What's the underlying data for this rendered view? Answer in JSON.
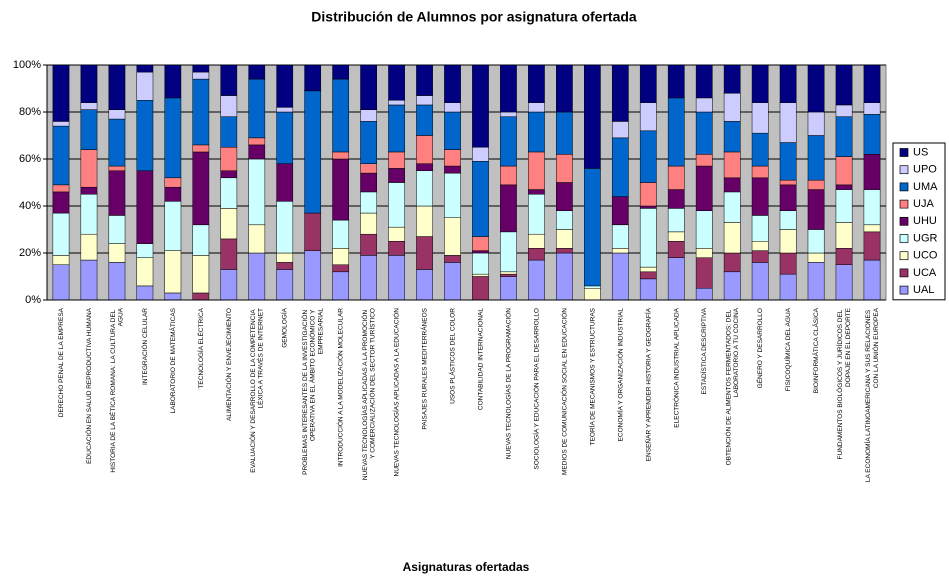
{
  "chart_data": {
    "type": "stacked_bar_100",
    "title": "Distribución de Alumnos por asignatura ofertada",
    "x_label": "Asignaturas ofertadas",
    "categories": [
      "DERECHO PENAL DE LA EMPRESA",
      "EDUCACIÓN EN SALUD REPRODUCTIVA HUMANA",
      "HISTORIA DE LA BÉTICA ROMANA: LA CULTURA DEL AGUA",
      "INTEGRACIÓN CELULAR",
      "LABORATORIO DE MATEMÁTICAS",
      "TECNOLOGÍA ELÉCTRICA",
      "ALIMENTACIÓN Y ENVEJECIMIENTO",
      "EVALUACIÓN Y DESARROLLO DE LA COMPETENCIA LÉXICA A TRAVÉS DE INTERNET",
      "GEMOLOGÍA",
      "PROBLEMAS INTERESANTES DE LA INVESTIGACIÓN OPERATIVA EN EL ÁMBITO ECONÓMICO Y EMPRESARIAL",
      "INTRODUCCIÓN A LA MODELIZACIÓN MOLECULAR",
      "NUEVAS TECNOLOGÍAS APLICADAS A LA PROMOCIÓN Y COMERCIALIZACIÓN DEL SECTOR TURÍSTICO",
      "NUEVAS TECNOLOGÍAS APLICADAS A LA EDUCACIÓN",
      "PAISAJES RURALES MEDITERRÁNEOS",
      "USOS PLÁSTICOS DEL COLOR",
      "CONTABILIDAD INTERNACIONAL",
      "NUEVAS TECNOLOGÍAS DE LA PROGRAMACIÓN",
      "SOCIOLOGÍA Y EDUCACIÓN PARA EL DESARROLLO",
      "MEDIOS DE COMUNICACIÓN SOCIAL EN EDUCACIÓN",
      "TEORÍA DE MECANISMOS Y ESTRUCTURAS",
      "ECONOMÍA Y ORGANIZACIÓN INDUSTRIAL",
      "ENSEÑAR Y APRENDER HISTORIA Y GEOGRAFÍA",
      "ELECTRÓNICA INDUSTRIAL APLICADA",
      "ESTADÍSTICA DESCRIPTIVA",
      "OBTENCIÓN DE ALIMENTOS FERMENTADOS: DEL LABORATORIO A TU COCINA",
      "GÉNERO Y DESARROLLO",
      "FISICOQUÍMICA DEL AGUA",
      "BIOINFORMÁTICA CLÁSICA",
      "FUNDAMENTOS BIOLÓGICOS Y JURÍDICOS DEL DOPAJE EN EL DEPORTE",
      "LA ECONOMÍA LATINOAMERICANA Y SUS RELACIONES CON LA UNIÓN EUROPEA"
    ],
    "series": [
      {
        "name": "UAL",
        "color": "#9999ff",
        "values": [
          15,
          17,
          16,
          6,
          3,
          0,
          13,
          20,
          13,
          21,
          12,
          19,
          19,
          13,
          16,
          0,
          10,
          17,
          20,
          0,
          20,
          9,
          18,
          5,
          12,
          16,
          11,
          16,
          15,
          17
        ]
      },
      {
        "name": "UCA",
        "color": "#993366",
        "values": [
          0,
          0,
          0,
          0,
          0,
          3,
          13,
          0,
          3,
          16,
          3,
          9,
          6,
          14,
          3,
          10,
          1,
          5,
          2,
          0,
          0,
          3,
          7,
          13,
          8,
          5,
          9,
          0,
          7,
          12
        ]
      },
      {
        "name": "UCO",
        "color": "#ffffcc",
        "values": [
          4,
          11,
          8,
          12,
          18,
          16,
          13,
          12,
          4,
          0,
          7,
          9,
          6,
          13,
          16,
          1,
          1,
          6,
          8,
          5,
          2,
          2,
          4,
          4,
          13,
          4,
          10,
          4,
          11,
          3
        ]
      },
      {
        "name": "UGR",
        "color": "#ccffff",
        "values": [
          18,
          17,
          12,
          6,
          21,
          13,
          13,
          28,
          22,
          0,
          12,
          9,
          19,
          15,
          19,
          9,
          17,
          17,
          8,
          1,
          10,
          25,
          10,
          16,
          13,
          11,
          8,
          10,
          14,
          15
        ]
      },
      {
        "name": "UHU",
        "color": "#660066",
        "values": [
          9,
          3,
          19,
          31,
          6,
          31,
          3,
          6,
          16,
          0,
          26,
          8,
          6,
          3,
          3,
          1,
          20,
          2,
          12,
          0,
          12,
          1,
          8,
          19,
          6,
          16,
          11,
          17,
          2,
          15
        ]
      },
      {
        "name": "UJA",
        "color": "#ff8080",
        "values": [
          3,
          16,
          2,
          0,
          4,
          3,
          10,
          3,
          0,
          0,
          3,
          4,
          7,
          12,
          7,
          6,
          8,
          16,
          12,
          0,
          0,
          10,
          10,
          5,
          11,
          5,
          2,
          4,
          12,
          0
        ]
      },
      {
        "name": "UMA",
        "color": "#0066cc",
        "values": [
          25,
          17,
          20,
          30,
          34,
          28,
          13,
          25,
          22,
          52,
          31,
          18,
          20,
          13,
          16,
          32,
          21,
          17,
          18,
          50,
          25,
          22,
          29,
          18,
          13,
          14,
          16,
          19,
          17,
          17
        ]
      },
      {
        "name": "UPO",
        "color": "#ccccff",
        "values": [
          2,
          3,
          4,
          12,
          0,
          3,
          9,
          0,
          2,
          0,
          0,
          5,
          2,
          4,
          4,
          6,
          2,
          4,
          0,
          0,
          7,
          12,
          0,
          6,
          12,
          13,
          17,
          10,
          5,
          5
        ]
      },
      {
        "name": "US",
        "color": "#000080",
        "values": [
          24,
          16,
          19,
          3,
          14,
          3,
          13,
          6,
          18,
          11,
          6,
          19,
          15,
          13,
          16,
          35,
          20,
          16,
          20,
          44,
          24,
          16,
          14,
          14,
          12,
          16,
          16,
          20,
          17,
          16
        ]
      }
    ],
    "ylim": [
      0,
      100
    ],
    "yticks": [
      {
        "value": 0,
        "label": "0%"
      },
      {
        "value": 20,
        "label": "20%"
      },
      {
        "value": 40,
        "label": "40%"
      },
      {
        "value": 60,
        "label": "60%"
      },
      {
        "value": 80,
        "label": "80%"
      },
      {
        "value": 100,
        "label": "100%"
      }
    ],
    "grid": true,
    "plot_background": "#c0c0c0",
    "legend": "right"
  }
}
